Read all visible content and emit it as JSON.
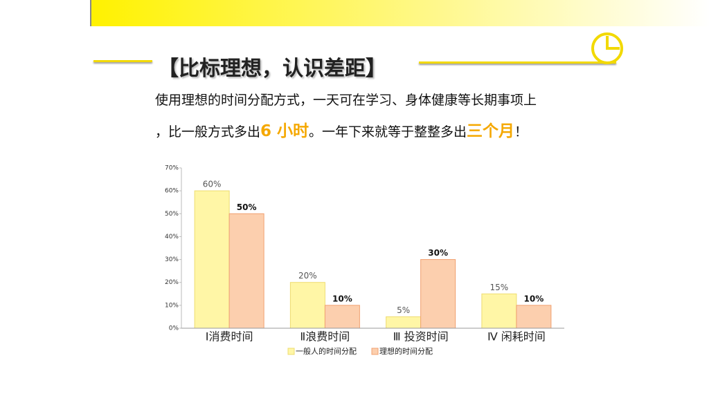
{
  "slide": {
    "title": "【比标理想，认识差距】",
    "line1": "使用理想的时间分配方式，一天可在学习、身体健康等长期事项上",
    "line2": [
      "，比一般方式多出",
      "6 小时",
      "。一年下来就等于整整多出",
      "三个月",
      "！"
    ]
  },
  "chart_data": {
    "type": "bar",
    "categories": [
      "Ⅰ消费时间",
      "Ⅱ浪费时间",
      "Ⅲ 投资时间",
      "Ⅳ 闲耗时间"
    ],
    "series": [
      {
        "name": "一般人的时间分配",
        "color": "#fff6a6",
        "values": [
          60,
          20,
          5,
          15
        ],
        "value_labels": [
          "60%",
          "20%",
          "5%",
          "15%"
        ]
      },
      {
        "name": "理想的时间分配",
        "color": "#fccfae",
        "values": [
          50,
          10,
          30,
          10
        ],
        "value_labels": [
          "50%",
          "10%",
          "30%",
          "10%"
        ]
      }
    ],
    "ylim": [
      0,
      70
    ],
    "yticks": [
      {
        "value": 0,
        "label": "0%"
      },
      {
        "value": 10,
        "label": "10%"
      },
      {
        "value": 20,
        "label": "20%"
      },
      {
        "value": 30,
        "label": "30%"
      },
      {
        "value": 40,
        "label": "40%"
      },
      {
        "value": 50,
        "label": "50%"
      },
      {
        "value": 60,
        "label": "60%"
      },
      {
        "value": 70,
        "label": "70%"
      }
    ],
    "legend": "bottom"
  }
}
